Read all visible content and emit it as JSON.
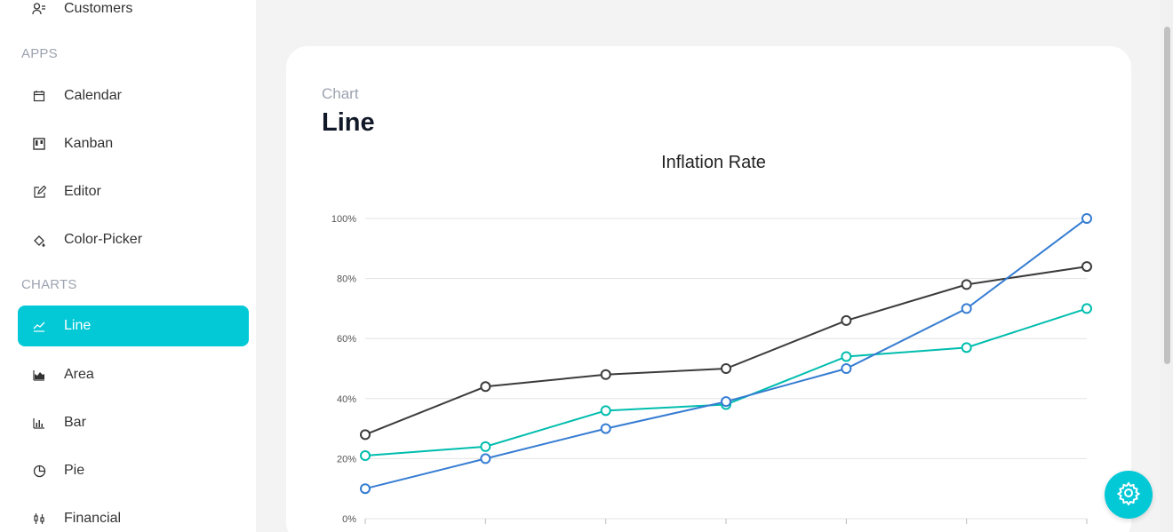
{
  "sidebar": {
    "top_item": {
      "label": "Customers",
      "icon": "customers-icon"
    },
    "sections": [
      {
        "label": "APPS"
      },
      {
        "label": "CHARTS"
      }
    ],
    "apps": [
      {
        "label": "Calendar",
        "icon": "calendar-icon"
      },
      {
        "label": "Kanban",
        "icon": "kanban-icon"
      },
      {
        "label": "Editor",
        "icon": "editor-icon"
      },
      {
        "label": "Color-Picker",
        "icon": "color-picker-icon"
      }
    ],
    "charts": [
      {
        "label": "Line",
        "icon": "line-chart-icon",
        "active": true
      },
      {
        "label": "Area",
        "icon": "area-chart-icon"
      },
      {
        "label": "Bar",
        "icon": "bar-chart-icon"
      },
      {
        "label": "Pie",
        "icon": "pie-chart-icon"
      },
      {
        "label": "Financial",
        "icon": "financial-icon"
      }
    ]
  },
  "header": {
    "category": "Chart",
    "title": "Line"
  },
  "colors": {
    "accent": "#03c9d7"
  },
  "chart_data": {
    "type": "line",
    "title": "Inflation Rate",
    "xlabel": "",
    "ylabel": "",
    "ylim": [
      0,
      100
    ],
    "y_ticks": [
      "0%",
      "20%",
      "40%",
      "60%",
      "80%",
      "100%"
    ],
    "grid": true,
    "series": [
      {
        "color": "#3b3b3b",
        "values": [
          28,
          44,
          48,
          50,
          66,
          78,
          84
        ]
      },
      {
        "color": "#00bdae",
        "values": [
          21,
          24,
          36,
          38,
          54,
          57,
          70
        ]
      },
      {
        "color": "#357cd2",
        "values": [
          10,
          20,
          30,
          39,
          50,
          70,
          100
        ]
      }
    ]
  }
}
